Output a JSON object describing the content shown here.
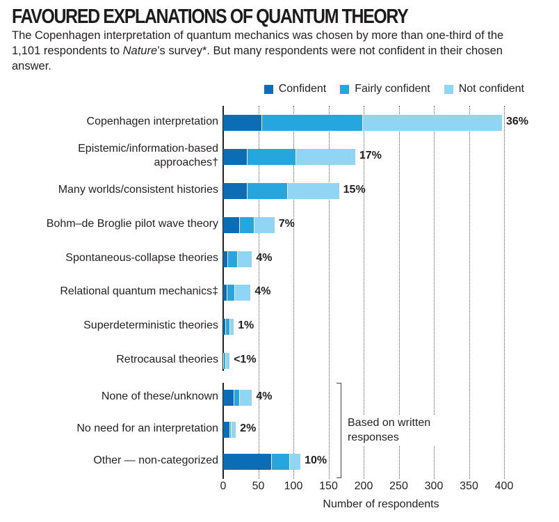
{
  "header": {
    "title": "FAVOURED EXPLANATIONS OF QUANTUM THEORY",
    "subtitle_part1": "The Copenhagen interpretation of quantum mechanics was chosen by more than one-third of the 1,101 respondents to ",
    "subtitle_italic": "Nature",
    "subtitle_part2": "’s survey*. But many respondents were not confident in their chosen answer."
  },
  "legend": [
    {
      "label": "Confident",
      "color": "#0b6db6"
    },
    {
      "label": "Fairly confident",
      "color": "#25a6df"
    },
    {
      "label": "Not confident",
      "color": "#90d5f4"
    }
  ],
  "axis": {
    "xlabel": "Number of respondents",
    "ticks": [
      "0",
      "50",
      "100",
      "150",
      "200",
      "250",
      "300",
      "350",
      "400"
    ]
  },
  "annotation": {
    "line1": "Based on written",
    "line2": "responses"
  },
  "chart_data": {
    "type": "bar",
    "orientation": "horizontal",
    "stacked": true,
    "title": "FAVOURED EXPLANATIONS OF QUANTUM THEORY",
    "subtitle": "The Copenhagen interpretation of quantum mechanics was chosen by more than one-third of the 1,101 respondents to Nature’s survey*. But many respondents were not confident in their chosen answer.",
    "xlabel": "Number of respondents",
    "ylabel": "",
    "xlim": [
      0,
      400
    ],
    "xticks": [
      0,
      50,
      100,
      150,
      200,
      250,
      300,
      350,
      400
    ],
    "grid": "vertical dotted",
    "legend_position": "top-right",
    "categories": [
      "Copenhagen interpretation",
      "Epistemic/information-based approaches†",
      "Many worlds/consistent histories",
      "Bohm–de Broglie pilot wave theory",
      "Spontaneous-collapse theories",
      "Relational quantum mechanics‡",
      "Superdeterministic theories",
      "Retrocausal theories",
      "None of these/unknown",
      "No need for an interpretation",
      "Other — non-categorized"
    ],
    "series": [
      {
        "name": "Confident",
        "color": "#0b6db6",
        "values": [
          55,
          35,
          35,
          24,
          7,
          6,
          4,
          1,
          16,
          10,
          69
        ]
      },
      {
        "name": "Fairly confident",
        "color": "#25a6df",
        "values": [
          144,
          69,
          57,
          21,
          14,
          11,
          6,
          3,
          8,
          2,
          26
        ]
      },
      {
        "name": "Not confident",
        "color": "#90d5f4",
        "values": [
          198,
          84,
          73,
          28,
          20,
          22,
          5,
          5,
          17,
          6,
          15
        ]
      }
    ],
    "totals": [
      397,
      188,
      165,
      73,
      41,
      39,
      15,
      9,
      41,
      18,
      110
    ],
    "percent_labels": [
      "36%",
      "17%",
      "15%",
      "7%",
      "4%",
      "4%",
      "1%",
      "<1%",
      "4%",
      "2%",
      "10%"
    ],
    "annotations": [
      {
        "text": "Based on written responses",
        "applies_to": [
          "None of these/unknown",
          "No need for an interpretation",
          "Other — non-categorized"
        ]
      }
    ]
  },
  "rows": [
    {
      "label": "Copenhagen interpretation",
      "pct": "36%"
    },
    {
      "label": "Epistemic/information-based",
      "label2": "approaches†",
      "pct": "17%"
    },
    {
      "label": "Many worlds/consistent histories",
      "pct": "15%"
    },
    {
      "label": "Bohm–de Broglie pilot wave theory",
      "pct": "7%"
    },
    {
      "label": "Spontaneous-collapse theories",
      "pct": "4%"
    },
    {
      "label": "Relational quantum mechanics‡",
      "pct": "4%"
    },
    {
      "label": "Superdeterministic theories",
      "pct": "1%"
    },
    {
      "label": "Retrocausal theories",
      "pct": "<1%"
    },
    {
      "label": "None of these/unknown",
      "pct": "4%"
    },
    {
      "label": "No need for an interpretation",
      "pct": "2%"
    },
    {
      "label": "Other — non-categorized",
      "pct": "10%"
    }
  ]
}
